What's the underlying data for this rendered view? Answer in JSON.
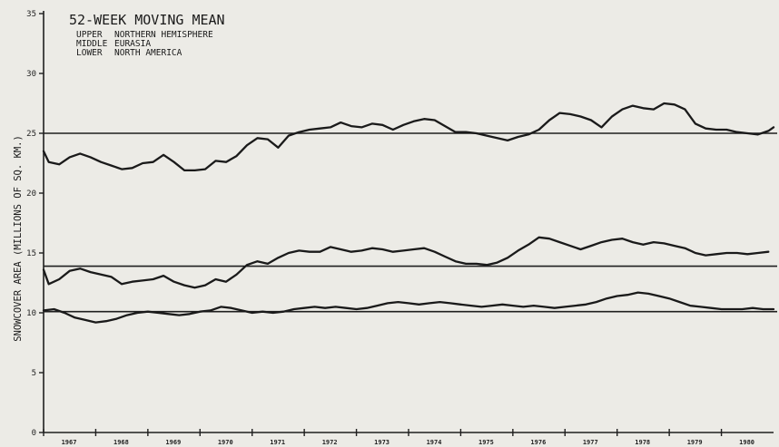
{
  "chart_data": {
    "type": "line",
    "title": "52-WEEK MOVING MEAN",
    "legend": [
      {
        "position": "UPPER",
        "label": "NORTHERN HEMISPHERE"
      },
      {
        "position": "MIDDLE",
        "label": "EURASIA"
      },
      {
        "position": "LOWER",
        "label": "NORTH AMERICA"
      }
    ],
    "ylabel": "SNOWCOVER AREA (MILLIONS OF SQ. KM.)",
    "xlabel": "",
    "ylim": [
      0,
      35
    ],
    "xlim": [
      1967,
      1981
    ],
    "y_ticks": [
      {
        "value": 0,
        "label": "0"
      },
      {
        "value": 5,
        "label": "5"
      },
      {
        "value": 10,
        "label": "10"
      },
      {
        "value": 15,
        "label": "15"
      },
      {
        "value": 20,
        "label": "20"
      },
      {
        "value": 25,
        "label": "25"
      },
      {
        "value": 30,
        "label": "30"
      },
      {
        "value": 35,
        "label": "35"
      }
    ],
    "x_ticks": [
      {
        "value": 1967,
        "label": "1967"
      },
      {
        "value": 1968,
        "label": "1968"
      },
      {
        "value": 1969,
        "label": "1969"
      },
      {
        "value": 1970,
        "label": "1970"
      },
      {
        "value": 1971,
        "label": "1971"
      },
      {
        "value": 1972,
        "label": "1972"
      },
      {
        "value": 1973,
        "label": "1973"
      },
      {
        "value": 1974,
        "label": "1974"
      },
      {
        "value": 1975,
        "label": "1975"
      },
      {
        "value": 1976,
        "label": "1976"
      },
      {
        "value": 1977,
        "label": "1977"
      },
      {
        "value": 1978,
        "label": "1978"
      },
      {
        "value": 1979,
        "label": "1979"
      },
      {
        "value": 1980,
        "label": "1980"
      }
    ],
    "reference_lines": [
      {
        "series": "NORTHERN HEMISPHERE",
        "y": 25.0
      },
      {
        "series": "EURASIA",
        "y": 13.9
      },
      {
        "series": "NORTH AMERICA",
        "y": 10.1
      }
    ],
    "series": [
      {
        "name": "NORTHERN HEMISPHERE",
        "x": [
          1967.0,
          1967.1,
          1967.3,
          1967.5,
          1967.7,
          1967.9,
          1968.1,
          1968.3,
          1968.5,
          1968.7,
          1968.9,
          1969.1,
          1969.3,
          1969.5,
          1969.7,
          1969.9,
          1970.1,
          1970.3,
          1970.5,
          1970.7,
          1970.9,
          1971.1,
          1971.3,
          1971.5,
          1971.7,
          1971.9,
          1972.1,
          1972.3,
          1972.5,
          1972.7,
          1972.9,
          1973.1,
          1973.3,
          1973.5,
          1973.7,
          1973.9,
          1974.1,
          1974.3,
          1974.5,
          1974.7,
          1974.9,
          1975.1,
          1975.3,
          1975.5,
          1975.7,
          1975.9,
          1976.1,
          1976.3,
          1976.5,
          1976.7,
          1976.9,
          1977.1,
          1977.3,
          1977.5,
          1977.7,
          1977.9,
          1978.1,
          1978.3,
          1978.5,
          1978.7,
          1978.9,
          1979.1,
          1979.3,
          1979.5,
          1979.7,
          1979.9,
          1980.1,
          1980.3,
          1980.5,
          1980.7,
          1980.9,
          1981.0
        ],
        "y": [
          23.5,
          22.6,
          22.4,
          23.0,
          23.3,
          23.0,
          22.6,
          22.3,
          22.0,
          22.1,
          22.5,
          22.6,
          23.2,
          22.6,
          21.9,
          21.9,
          22.0,
          22.7,
          22.6,
          23.1,
          24.0,
          24.6,
          24.5,
          23.8,
          24.8,
          25.1,
          25.3,
          25.4,
          25.5,
          25.9,
          25.6,
          25.5,
          25.8,
          25.7,
          25.3,
          25.7,
          26.0,
          26.2,
          26.1,
          25.6,
          25.1,
          25.1,
          25.0,
          24.8,
          24.6,
          24.4,
          24.7,
          24.9,
          25.3,
          26.1,
          26.7,
          26.6,
          26.4,
          26.1,
          25.5,
          26.4,
          27.0,
          27.3,
          27.1,
          27.0,
          27.5,
          27.4,
          27.0,
          25.8,
          25.4,
          25.3,
          25.3,
          25.1,
          25.0,
          24.9,
          25.2,
          25.5
        ]
      },
      {
        "name": "EURASIA",
        "x": [
          1967.0,
          1967.1,
          1967.3,
          1967.5,
          1967.7,
          1967.9,
          1968.1,
          1968.3,
          1968.5,
          1968.7,
          1968.9,
          1969.1,
          1969.3,
          1969.5,
          1969.7,
          1969.9,
          1970.1,
          1970.3,
          1970.5,
          1970.7,
          1970.9,
          1971.1,
          1971.3,
          1971.5,
          1971.7,
          1971.9,
          1972.1,
          1972.3,
          1972.5,
          1972.7,
          1972.9,
          1973.1,
          1973.3,
          1973.5,
          1973.7,
          1973.9,
          1974.1,
          1974.3,
          1974.5,
          1974.7,
          1974.9,
          1975.1,
          1975.3,
          1975.5,
          1975.7,
          1975.9,
          1976.1,
          1976.3,
          1976.5,
          1976.7,
          1976.9,
          1977.1,
          1977.3,
          1977.5,
          1977.7,
          1977.9,
          1978.1,
          1978.3,
          1978.5,
          1978.7,
          1978.9,
          1979.1,
          1979.3,
          1979.5,
          1979.7,
          1979.9,
          1980.1,
          1980.3,
          1980.5,
          1980.7,
          1980.9
        ],
        "y": [
          13.6,
          12.4,
          12.8,
          13.5,
          13.7,
          13.4,
          13.2,
          13.0,
          12.4,
          12.6,
          12.7,
          12.8,
          13.1,
          12.6,
          12.3,
          12.1,
          12.3,
          12.8,
          12.6,
          13.2,
          14.0,
          14.3,
          14.1,
          14.6,
          15.0,
          15.2,
          15.1,
          15.1,
          15.5,
          15.3,
          15.1,
          15.2,
          15.4,
          15.3,
          15.1,
          15.2,
          15.3,
          15.4,
          15.1,
          14.7,
          14.3,
          14.1,
          14.1,
          14.0,
          14.2,
          14.6,
          15.2,
          15.7,
          16.3,
          16.2,
          15.9,
          15.6,
          15.3,
          15.6,
          15.9,
          16.1,
          16.2,
          15.9,
          15.7,
          15.9,
          15.8,
          15.6,
          15.4,
          15.0,
          14.8,
          14.9,
          15.0,
          15.0,
          14.9,
          15.0,
          15.1
        ]
      },
      {
        "name": "NORTH AMERICA",
        "x": [
          1967.0,
          1967.2,
          1967.4,
          1967.6,
          1967.8,
          1968.0,
          1968.2,
          1968.4,
          1968.6,
          1968.8,
          1969.0,
          1969.2,
          1969.4,
          1969.6,
          1969.8,
          1970.0,
          1970.2,
          1970.4,
          1970.6,
          1970.8,
          1971.0,
          1971.2,
          1971.4,
          1971.6,
          1971.8,
          1972.0,
          1972.2,
          1972.4,
          1972.6,
          1972.8,
          1973.0,
          1973.2,
          1973.4,
          1973.6,
          1973.8,
          1974.0,
          1974.2,
          1974.4,
          1974.6,
          1974.8,
          1975.0,
          1975.2,
          1975.4,
          1975.6,
          1975.8,
          1976.0,
          1976.2,
          1976.4,
          1976.6,
          1976.8,
          1977.0,
          1977.2,
          1977.4,
          1977.6,
          1977.8,
          1978.0,
          1978.2,
          1978.4,
          1978.6,
          1978.8,
          1979.0,
          1979.2,
          1979.4,
          1979.6,
          1979.8,
          1980.0,
          1980.2,
          1980.4,
          1980.6,
          1980.8,
          1981.0
        ],
        "y": [
          10.2,
          10.3,
          10.0,
          9.6,
          9.4,
          9.2,
          9.3,
          9.5,
          9.8,
          10.0,
          10.1,
          10.0,
          9.9,
          9.8,
          9.9,
          10.1,
          10.2,
          10.5,
          10.4,
          10.2,
          10.0,
          10.1,
          10.0,
          10.1,
          10.3,
          10.4,
          10.5,
          10.4,
          10.5,
          10.4,
          10.3,
          10.4,
          10.6,
          10.8,
          10.9,
          10.8,
          10.7,
          10.8,
          10.9,
          10.8,
          10.7,
          10.6,
          10.5,
          10.6,
          10.7,
          10.6,
          10.5,
          10.6,
          10.5,
          10.4,
          10.5,
          10.6,
          10.7,
          10.9,
          11.2,
          11.4,
          11.5,
          11.7,
          11.6,
          11.4,
          11.2,
          10.9,
          10.6,
          10.5,
          10.4,
          10.3,
          10.3,
          10.3,
          10.4,
          10.3,
          10.3
        ]
      }
    ]
  }
}
